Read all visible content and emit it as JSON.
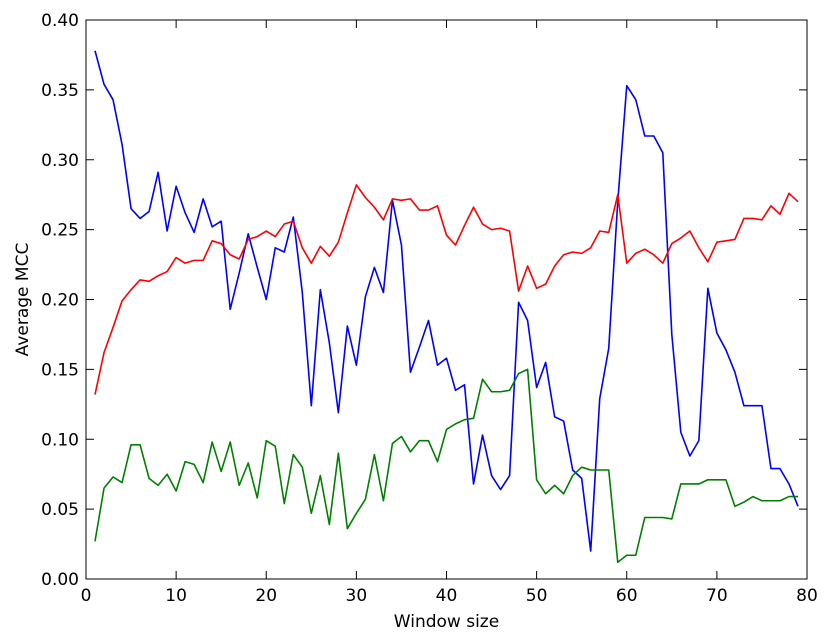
{
  "chart_data": {
    "type": "line",
    "title": "",
    "xlabel": "Window size",
    "ylabel": "Average MCC",
    "xlim": [
      0,
      80
    ],
    "ylim": [
      0.0,
      0.4
    ],
    "xticks": [
      0,
      10,
      20,
      30,
      40,
      50,
      60,
      70,
      80
    ],
    "xtick_labels": [
      "0",
      "10",
      "20",
      "30",
      "40",
      "50",
      "60",
      "70",
      "80"
    ],
    "yticks": [
      0.0,
      0.05,
      0.1,
      0.15,
      0.2,
      0.25,
      0.3,
      0.35,
      0.4
    ],
    "ytick_labels": [
      "0.00",
      "0.05",
      "0.10",
      "0.15",
      "0.20",
      "0.25",
      "0.30",
      "0.35",
      "0.40"
    ],
    "grid": false,
    "legend": "none",
    "x": [
      1,
      2,
      3,
      4,
      5,
      6,
      7,
      8,
      9,
      10,
      11,
      12,
      13,
      14,
      15,
      16,
      17,
      18,
      19,
      20,
      21,
      22,
      23,
      24,
      25,
      26,
      27,
      28,
      29,
      30,
      31,
      32,
      33,
      34,
      35,
      36,
      37,
      38,
      39,
      40,
      41,
      42,
      43,
      44,
      45,
      46,
      47,
      48,
      49,
      50,
      51,
      52,
      53,
      54,
      55,
      56,
      57,
      58,
      59,
      60,
      61,
      62,
      63,
      64,
      65,
      66,
      67,
      68,
      69,
      70,
      71,
      72,
      73,
      74,
      75,
      76,
      77,
      78,
      79
    ],
    "series": [
      {
        "color": "#0000ff",
        "values": [
          0.378,
          0.354,
          0.343,
          0.311,
          0.265,
          0.258,
          0.263,
          0.291,
          0.249,
          0.281,
          0.262,
          0.248,
          0.272,
          0.252,
          0.256,
          0.193,
          0.219,
          0.247,
          0.223,
          0.2,
          0.237,
          0.234,
          0.259,
          0.205,
          0.124,
          0.207,
          0.169,
          0.119,
          0.181,
          0.153,
          0.202,
          0.223,
          0.205,
          0.271,
          0.239,
          0.148,
          0.166,
          0.185,
          0.153,
          0.158,
          0.135,
          0.139,
          0.068,
          0.103,
          0.074,
          0.064,
          0.074,
          0.198,
          0.185,
          0.137,
          0.155,
          0.116,
          0.113,
          0.078,
          0.072,
          0.02,
          0.129,
          0.165,
          0.27,
          0.353,
          0.343,
          0.317,
          0.317,
          0.305,
          0.175,
          0.105,
          0.088,
          0.099,
          0.208,
          0.176,
          0.164,
          0.148,
          0.124,
          0.124,
          0.124,
          0.079,
          0.079,
          0.068,
          0.052
        ]
      },
      {
        "color": "#ff0000",
        "values": [
          0.132,
          0.162,
          0.18,
          0.199,
          0.207,
          0.214,
          0.213,
          0.217,
          0.22,
          0.23,
          0.226,
          0.228,
          0.228,
          0.242,
          0.24,
          0.232,
          0.229,
          0.243,
          0.245,
          0.249,
          0.245,
          0.254,
          0.256,
          0.237,
          0.226,
          0.238,
          0.231,
          0.241,
          0.262,
          0.282,
          0.273,
          0.266,
          0.257,
          0.272,
          0.271,
          0.272,
          0.264,
          0.264,
          0.267,
          0.246,
          0.239,
          0.253,
          0.266,
          0.254,
          0.25,
          0.251,
          0.249,
          0.206,
          0.224,
          0.208,
          0.211,
          0.224,
          0.232,
          0.234,
          0.233,
          0.237,
          0.249,
          0.248,
          0.275,
          0.226,
          0.233,
          0.236,
          0.232,
          0.226,
          0.24,
          0.244,
          0.249,
          0.237,
          0.227,
          0.241,
          0.242,
          0.243,
          0.258,
          0.258,
          0.257,
          0.267,
          0.261,
          0.276,
          0.27
        ]
      },
      {
        "color": "#008000",
        "values": [
          0.027,
          0.065,
          0.073,
          0.069,
          0.096,
          0.096,
          0.072,
          0.067,
          0.075,
          0.063,
          0.084,
          0.082,
          0.069,
          0.098,
          0.077,
          0.098,
          0.067,
          0.083,
          0.058,
          0.099,
          0.095,
          0.054,
          0.089,
          0.08,
          0.047,
          0.074,
          0.039,
          0.09,
          0.036,
          0.047,
          0.057,
          0.089,
          0.056,
          0.097,
          0.102,
          0.091,
          0.099,
          0.099,
          0.084,
          0.107,
          0.111,
          0.114,
          0.115,
          0.143,
          0.134,
          0.134,
          0.135,
          0.147,
          0.15,
          0.071,
          0.061,
          0.067,
          0.061,
          0.074,
          0.08,
          0.078,
          0.078,
          0.078,
          0.012,
          0.017,
          0.017,
          0.044,
          0.044,
          0.044,
          0.043,
          0.068,
          0.068,
          0.068,
          0.071,
          0.071,
          0.071,
          0.052,
          0.055,
          0.059,
          0.056,
          0.056,
          0.056,
          0.059,
          0.059
        ]
      }
    ]
  }
}
